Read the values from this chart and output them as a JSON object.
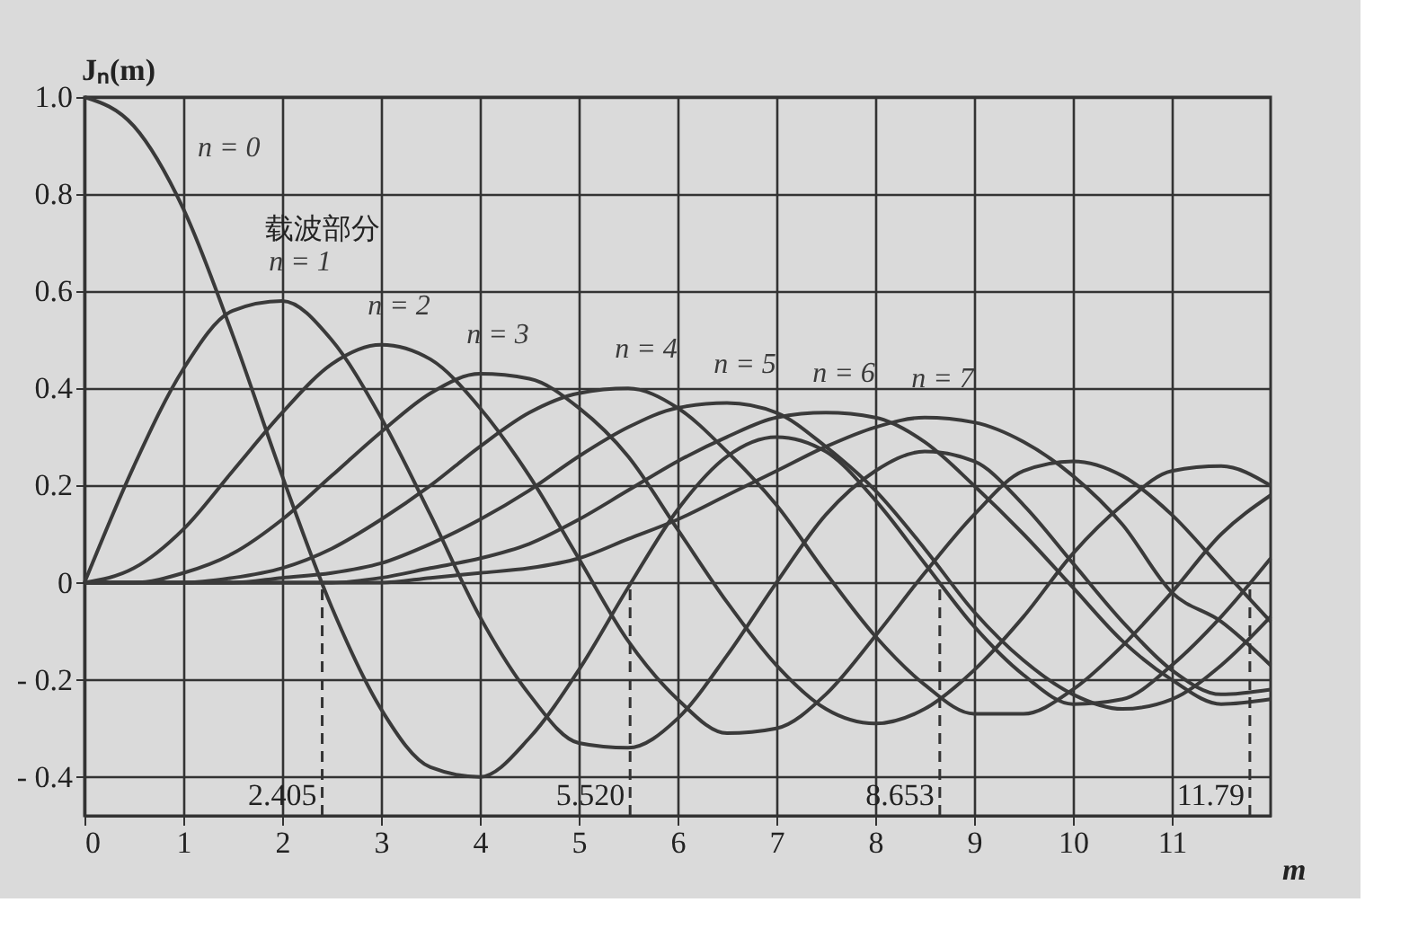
{
  "chart_data": {
    "type": "line",
    "xlabel": "m",
    "ylabel": "Jₙ(m)",
    "x": [
      0,
      0.5,
      1,
      1.5,
      2,
      2.5,
      3,
      3.5,
      4,
      4.5,
      5,
      5.5,
      6,
      6.5,
      7,
      7.5,
      8,
      8.5,
      9,
      9.5,
      10,
      10.5,
      11,
      11.5,
      12
    ],
    "xlim": [
      0,
      12
    ],
    "xticks": [
      0,
      1,
      2,
      3,
      4,
      5,
      6,
      7,
      8,
      9,
      10,
      11
    ],
    "ylim": [
      -0.48,
      1.0
    ],
    "yticks": [
      {
        "value": -0.4,
        "label": "- 0.4"
      },
      {
        "value": -0.2,
        "label": "- 0.2"
      },
      0,
      0.2,
      0.4,
      0.6,
      0.8,
      {
        "value": 1.0,
        "label": "1.0"
      }
    ],
    "grid": true,
    "legend": false,
    "line_style": "solid",
    "marker": "none",
    "series": [
      {
        "name": "n = 0",
        "color": "#3a3a3a",
        "values": [
          1.0,
          0.94,
          0.77,
          0.51,
          0.22,
          -0.05,
          -0.26,
          -0.38,
          -0.4,
          -0.32,
          -0.18,
          -0.01,
          0.15,
          0.26,
          0.3,
          0.27,
          0.17,
          0.04,
          -0.09,
          -0.19,
          -0.25,
          -0.24,
          -0.17,
          -0.07,
          0.05
        ]
      },
      {
        "name": "n = 1",
        "color": "#3a3a3a",
        "values": [
          0,
          0.24,
          0.44,
          0.56,
          0.58,
          0.5,
          0.34,
          0.14,
          -0.07,
          -0.23,
          -0.33,
          -0.34,
          -0.28,
          -0.15,
          0.0,
          0.14,
          0.23,
          0.27,
          0.25,
          0.16,
          0.04,
          -0.08,
          -0.18,
          -0.23,
          -0.22
        ]
      },
      {
        "name": "n = 2",
        "color": "#3a3a3a",
        "values": [
          0,
          0.03,
          0.11,
          0.23,
          0.35,
          0.45,
          0.49,
          0.46,
          0.36,
          0.22,
          0.05,
          -0.12,
          -0.24,
          -0.31,
          -0.3,
          -0.23,
          -0.11,
          0.02,
          0.14,
          0.23,
          0.25,
          0.22,
          0.14,
          0.03,
          -0.08
        ]
      },
      {
        "name": "n = 3",
        "color": "#3a3a3a",
        "values": [
          0,
          0.0,
          0.02,
          0.06,
          0.13,
          0.22,
          0.31,
          0.39,
          0.43,
          0.42,
          0.36,
          0.26,
          0.11,
          -0.04,
          -0.17,
          -0.26,
          -0.29,
          -0.26,
          -0.18,
          -0.07,
          0.06,
          0.16,
          0.23,
          0.24,
          0.2
        ]
      },
      {
        "name": "n = 4",
        "color": "#3a3a3a",
        "values": [
          0,
          0.0,
          0.0,
          0.01,
          0.03,
          0.07,
          0.13,
          0.2,
          0.28,
          0.35,
          0.39,
          0.4,
          0.36,
          0.27,
          0.16,
          0.02,
          -0.11,
          -0.21,
          -0.27,
          -0.27,
          -0.22,
          -0.13,
          -0.02,
          0.1,
          0.18
        ]
      },
      {
        "name": "n = 5",
        "color": "#3a3a3a",
        "values": [
          0,
          0.0,
          0.0,
          0.0,
          0.01,
          0.02,
          0.04,
          0.08,
          0.13,
          0.19,
          0.26,
          0.32,
          0.36,
          0.37,
          0.35,
          0.28,
          0.19,
          0.07,
          -0.06,
          -0.16,
          -0.23,
          -0.26,
          -0.24,
          -0.17,
          -0.07
        ]
      },
      {
        "name": "n = 6",
        "color": "#3a3a3a",
        "values": [
          0,
          0.0,
          0.0,
          0.0,
          0.0,
          0.0,
          0.01,
          0.03,
          0.05,
          0.08,
          0.13,
          0.19,
          0.25,
          0.3,
          0.34,
          0.35,
          0.34,
          0.29,
          0.2,
          0.1,
          -0.01,
          -0.12,
          -0.2,
          -0.25,
          -0.24
        ]
      },
      {
        "name": "n = 7",
        "color": "#3a3a3a",
        "values": [
          0,
          0.0,
          0.0,
          0.0,
          0.0,
          0.0,
          0.0,
          0.01,
          0.02,
          0.03,
          0.05,
          0.09,
          0.13,
          0.18,
          0.23,
          0.28,
          0.32,
          0.34,
          0.33,
          0.29,
          0.22,
          0.12,
          -0.02,
          -0.08,
          -0.17
        ]
      }
    ],
    "ref_lines": [
      {
        "axis": "x",
        "value": 2.405,
        "label": "2.405",
        "line_style": "dashed"
      },
      {
        "axis": "x",
        "value": 5.52,
        "label": "5.520",
        "line_style": "dashed"
      },
      {
        "axis": "x",
        "value": 8.653,
        "label": "8.653",
        "line_style": "dashed"
      },
      {
        "axis": "x",
        "value": 11.79,
        "label": "11.79",
        "line_style": "dashed"
      }
    ],
    "annotations": [
      {
        "text": "载波部分",
        "x": 1.1,
        "y": 0.72
      }
    ]
  }
}
